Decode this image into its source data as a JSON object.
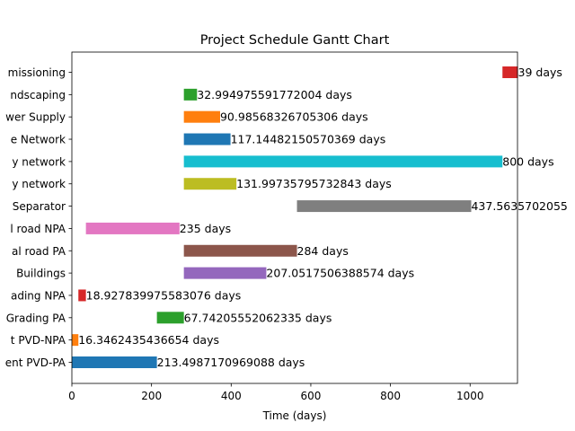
{
  "chart_data": {
    "type": "bar",
    "orientation": "horizontal-gantt",
    "title": "Project Schedule Gantt Chart",
    "xlabel": "Time (days)",
    "ylabel": "",
    "xlim": [
      0,
      1119
    ],
    "xticks": [
      0,
      200,
      400,
      600,
      800,
      1000
    ],
    "grid": false,
    "tasks": [
      {
        "name": "Infrastructure development PVD-PA",
        "start": 0,
        "duration": 213.4987170969088,
        "label": "213.4987170969088 days",
        "color": "#1f77b4"
      },
      {
        "name": "Infrastructure development PVD-NPA",
        "start": 0,
        "duration": 16.3462435436654,
        "label": "16.3462435436654 days",
        "color": "#ff7f0e"
      },
      {
        "name": "Grading PA",
        "start": 213.5,
        "duration": 67.74205552062335,
        "label": "67.74205552062335 days",
        "color": "#2ca02c"
      },
      {
        "name": "Grading NPA",
        "start": 16.35,
        "duration": 18.927839975583076,
        "label": "18.927839975583076 days",
        "color": "#d62728"
      },
      {
        "name": "Buildings",
        "start": 281.24,
        "duration": 207.0517506388574,
        "label": "207.0517506388574 days",
        "color": "#9467bd"
      },
      {
        "name": "Internal road PA",
        "start": 281.24,
        "duration": 284,
        "label": "284 days",
        "color": "#8c564b"
      },
      {
        "name": "Internal road NPA",
        "start": 35.27,
        "duration": 235,
        "label": "235 days",
        "color": "#e377c2"
      },
      {
        "name": "Separator",
        "start": 565.24,
        "duration": 437.5635702055,
        "label": "437.5635702055",
        "color": "#7f7f7f"
      },
      {
        "name": "Utility network",
        "start": 281.24,
        "duration": 131.99735795732843,
        "label": "131.99735795732843 days",
        "color": "#bcbd22"
      },
      {
        "name": "Utility network",
        "start": 281.24,
        "duration": 800,
        "label": "800 days",
        "color": "#17becf"
      },
      {
        "name": "Drainage Network",
        "start": 281.24,
        "duration": 117.14482150570369,
        "label": "117.14482150570369 days",
        "color": "#1f77b4"
      },
      {
        "name": "Power Supply",
        "start": 281.24,
        "duration": 90.98568326705306,
        "label": "90.98568326705306 days",
        "color": "#ff7f0e"
      },
      {
        "name": "Landscaping",
        "start": 281.24,
        "duration": 32.994975591772004,
        "label": "32.994975591772004 days",
        "color": "#2ca02c"
      },
      {
        "name": "Commissioning",
        "start": 1081.24,
        "duration": 39,
        "label": "39 days",
        "color": "#d62728"
      }
    ],
    "visible_tick_labels": [
      "ent PVD-PA",
      "t PVD-NPA",
      "Grading PA",
      "ading NPA",
      " Buildings",
      "al road PA",
      "l road NPA",
      "Separator",
      "y network",
      "y network",
      "e Network",
      "wer Supply",
      "ndscaping",
      "missioning"
    ]
  }
}
